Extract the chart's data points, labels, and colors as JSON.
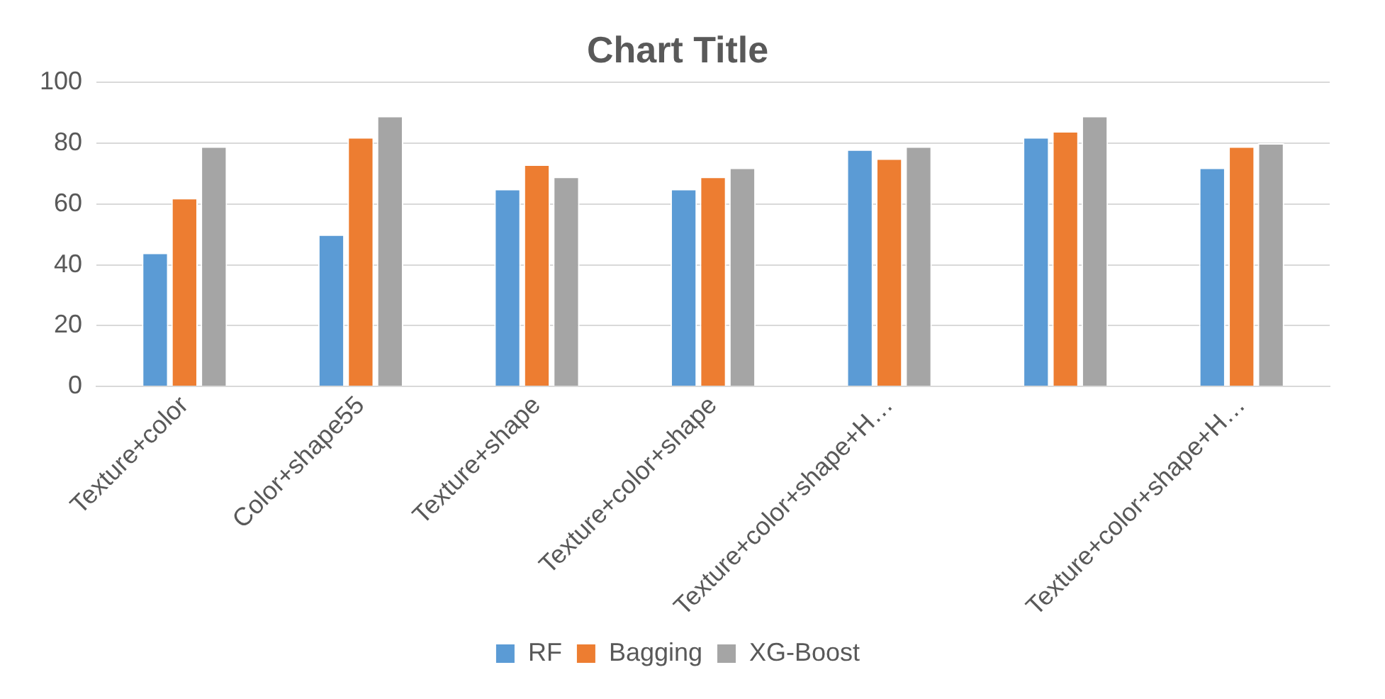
{
  "chart_data": {
    "type": "bar",
    "title": "Chart Title",
    "categories": [
      "Texture+color",
      "Color+shape55",
      "Texture+shape",
      "Texture+color+shape",
      "Texture+color+shape+H…",
      null,
      "Texture+color+shape+H…"
    ],
    "series": [
      {
        "name": "RF",
        "color": "#5b9bd5",
        "values": [
          44,
          50,
          65,
          65,
          78,
          82,
          72
        ]
      },
      {
        "name": "Bagging",
        "color": "#ed7d31",
        "values": [
          62,
          82,
          73,
          69,
          75,
          84,
          79
        ]
      },
      {
        "name": "XG-Boost",
        "color": "#a5a5a5",
        "values": [
          79,
          89,
          69,
          72,
          79,
          89,
          80
        ]
      }
    ],
    "ylim": [
      0,
      100
    ],
    "yticks": [
      0,
      20,
      40,
      60,
      80,
      100
    ],
    "grid": "y",
    "legend": "bottom"
  }
}
